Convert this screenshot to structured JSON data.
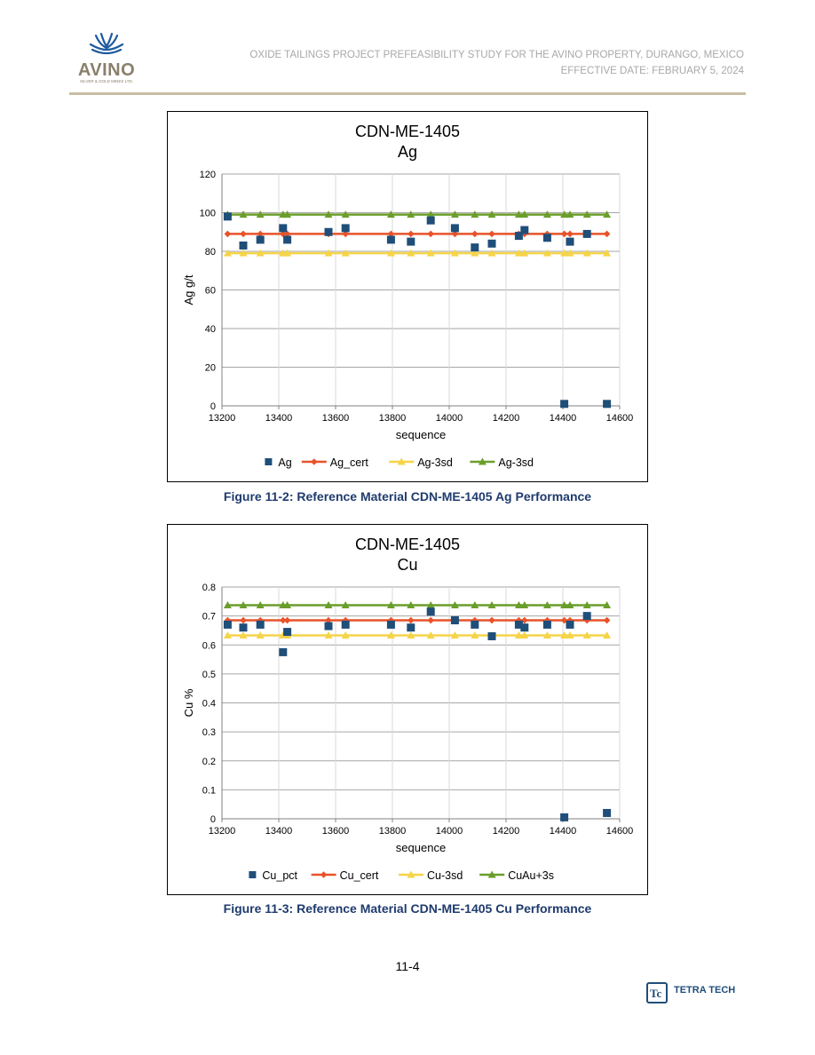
{
  "header": {
    "logo_text": "AVINO",
    "logo_subtext": "SILVER & GOLD MINES LTD.",
    "title_line": "OXIDE TAILINGS PROJECT PREFEASIBILITY STUDY FOR THE AVINO PROPERTY, DURANGO, MEXICO",
    "date_line": "EFFECTIVE DATE: FEBRUARY 5, 2024"
  },
  "figures": [
    {
      "caption": "Figure 11-2: Reference Material CDN-ME-1405 Ag Performance"
    },
    {
      "caption": "Figure 11-3: Reference Material CDN-ME-1405 Cu Performance"
    }
  ],
  "footer": {
    "page_number": "11-4",
    "brand": "TETRA TECH"
  },
  "colors": {
    "marker": "#1f4e79",
    "cert": "#e8532a",
    "low": "#f5d448",
    "high": "#6a9e2a",
    "caption": "#1f3b6e"
  },
  "chart_data": [
    {
      "type": "scatter",
      "title": "CDN-ME-1405",
      "subtitle": "Ag",
      "xlabel": "sequence",
      "ylabel": "Ag g/t",
      "xlim": [
        13200,
        14600
      ],
      "ylim": [
        0,
        120
      ],
      "xticks": [
        13200,
        13400,
        13600,
        13800,
        14000,
        14200,
        14400,
        14600
      ],
      "yticks": [
        0,
        20,
        40,
        60,
        80,
        100,
        120
      ],
      "grid": true,
      "legend": "bottom",
      "x": [
        13220,
        13275,
        13335,
        13415,
        13430,
        13575,
        13635,
        13795,
        13865,
        13935,
        14020,
        14090,
        14150,
        14245,
        14265,
        14345,
        14405,
        14425,
        14485,
        14555
      ],
      "series": [
        {
          "name": "Ag",
          "kind": "markers",
          "marker": "square",
          "color": "#1f4e79",
          "values": [
            98,
            83,
            86,
            92,
            86,
            90,
            92,
            86,
            85,
            96,
            92,
            82,
            84,
            88,
            91,
            87,
            1,
            85,
            89,
            1
          ]
        },
        {
          "name": "Ag_cert",
          "kind": "line",
          "marker": "diamond",
          "color": "#e8532a",
          "values": [
            89,
            89,
            89,
            89,
            89,
            89,
            89,
            89,
            89,
            89,
            89,
            89,
            89,
            89,
            89,
            89,
            89,
            89,
            89,
            89
          ]
        },
        {
          "name": "Ag-3sd",
          "kind": "line",
          "marker": "triangle",
          "color": "#f5d448",
          "values": [
            79,
            79,
            79,
            79,
            79,
            79,
            79,
            79,
            79,
            79,
            79,
            79,
            79,
            79,
            79,
            79,
            79,
            79,
            79,
            79
          ]
        },
        {
          "name": "Ag-3sd",
          "kind": "line",
          "marker": "triangle",
          "color": "#6a9e2a",
          "values": [
            99,
            99,
            99,
            99,
            99,
            99,
            99,
            99,
            99,
            99,
            99,
            99,
            99,
            99,
            99,
            99,
            99,
            99,
            99,
            99
          ]
        }
      ]
    },
    {
      "type": "scatter",
      "title": "CDN-ME-1405",
      "subtitle": "Cu",
      "xlabel": "sequence",
      "ylabel": "Cu %",
      "xlim": [
        13200,
        14600
      ],
      "ylim": [
        0,
        0.8
      ],
      "xticks": [
        13200,
        13400,
        13600,
        13800,
        14000,
        14200,
        14400,
        14600
      ],
      "yticks": [
        0,
        0.1,
        0.2,
        0.3,
        0.4,
        0.5,
        0.6,
        0.7,
        0.8
      ],
      "grid": true,
      "legend": "bottom",
      "x": [
        13220,
        13275,
        13335,
        13415,
        13430,
        13575,
        13635,
        13795,
        13865,
        13935,
        14020,
        14090,
        14150,
        14245,
        14265,
        14345,
        14405,
        14425,
        14485,
        14555
      ],
      "series": [
        {
          "name": "Cu_pct",
          "kind": "markers",
          "marker": "square",
          "color": "#1f4e79",
          "values": [
            0.67,
            0.66,
            0.67,
            0.575,
            0.645,
            0.665,
            0.67,
            0.67,
            0.66,
            0.715,
            0.685,
            0.67,
            0.63,
            0.67,
            0.66,
            0.67,
            0.005,
            0.67,
            0.7,
            0.02
          ]
        },
        {
          "name": "Cu_cert",
          "kind": "line",
          "marker": "diamond",
          "color": "#e8532a",
          "values": [
            0.685,
            0.685,
            0.685,
            0.685,
            0.685,
            0.685,
            0.685,
            0.685,
            0.685,
            0.685,
            0.685,
            0.685,
            0.685,
            0.685,
            0.685,
            0.685,
            0.685,
            0.685,
            0.685,
            0.685
          ]
        },
        {
          "name": "Cu-3sd",
          "kind": "line",
          "marker": "triangle",
          "color": "#f5d448",
          "values": [
            0.633,
            0.633,
            0.633,
            0.633,
            0.633,
            0.633,
            0.633,
            0.633,
            0.633,
            0.633,
            0.633,
            0.633,
            0.633,
            0.633,
            0.633,
            0.633,
            0.633,
            0.633,
            0.633,
            0.633
          ]
        },
        {
          "name": "CuAu+3s",
          "kind": "line",
          "marker": "triangle",
          "color": "#6a9e2a",
          "values": [
            0.737,
            0.737,
            0.737,
            0.737,
            0.737,
            0.737,
            0.737,
            0.737,
            0.737,
            0.737,
            0.737,
            0.737,
            0.737,
            0.737,
            0.737,
            0.737,
            0.737,
            0.737,
            0.737,
            0.737
          ]
        }
      ]
    }
  ]
}
